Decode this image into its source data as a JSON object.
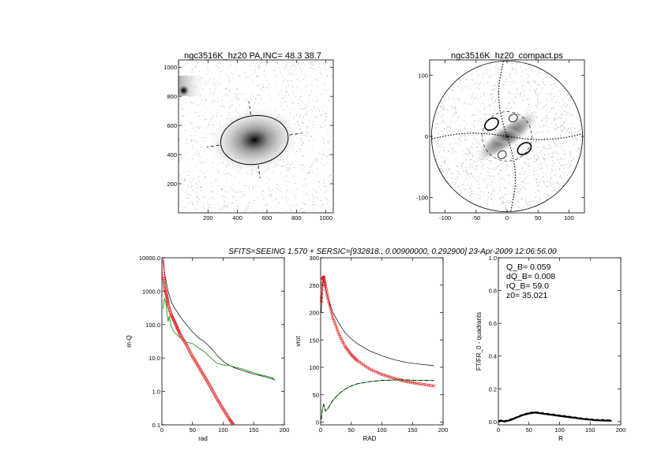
{
  "figure": {
    "header": "SFITS=SEEING 1.570 + SERSIC=[932818., 0.00900000, 0.292900]  23-Apr-2009 12:06:56.00"
  },
  "colors": {
    "axes": "#000000",
    "model": "#000000",
    "red_series": "#e02020",
    "green_series": "#1a9a1a",
    "image_gray": "#9a9a9a"
  },
  "chart_data": [
    {
      "id": "image",
      "type": "heatmap",
      "title": "ngc3516K_hz20 PA,INC= 48.3 38.7",
      "xlabel": "",
      "ylabel": "",
      "xlim": [
        0,
        1050
      ],
      "ylim": [
        0,
        1050
      ],
      "xticks": [
        "200",
        "400",
        "600",
        "800",
        "1000"
      ],
      "yticks": [
        "200",
        "400",
        "600",
        "800",
        "1000"
      ],
      "source_center": [
        515,
        500
      ],
      "bright_star": [
        35,
        840
      ],
      "ellipse": {
        "center": [
          515,
          500
        ],
        "semi_major": 230,
        "semi_minor": 165,
        "pa_deg": 48.3
      }
    },
    {
      "id": "compact",
      "type": "heatmap",
      "title": "ngc3516K_hz20_compact.ps",
      "xlabel": "",
      "ylabel": "",
      "xlim": [
        -125,
        125
      ],
      "ylim": [
        -125,
        125
      ],
      "xticks": [
        "-100",
        "-50",
        "0",
        "50",
        "100"
      ],
      "yticks": [
        "-100",
        "0",
        "100"
      ],
      "circle_radius": 122,
      "inner_dashed_radius": 40
    },
    {
      "id": "sb_profile",
      "type": "line",
      "title": "",
      "xlabel": "rad",
      "ylabel": "m-Q",
      "xlim": [
        0,
        200
      ],
      "ylim": [
        0.1,
        10000
      ],
      "yscale": "log",
      "xticks": [
        "0",
        "50",
        "100",
        "150",
        "200"
      ],
      "yticks": [
        "0.1",
        "1.0",
        "10.0",
        "100.0",
        "1000.0",
        "10000.0"
      ],
      "series": [
        {
          "style": "solid-black",
          "x": [
            2,
            5,
            10,
            15,
            20,
            30,
            40,
            50,
            60,
            70,
            80,
            90,
            100,
            110,
            120,
            130,
            140,
            150,
            160,
            170,
            180,
            185
          ],
          "y": [
            8000,
            3000,
            1000,
            500,
            330,
            170,
            100,
            60,
            40,
            30,
            20,
            12,
            8,
            6,
            5,
            4.3,
            3.8,
            3.3,
            3.0,
            2.7,
            2.4,
            2.2
          ]
        },
        {
          "style": "green",
          "x": [
            2,
            4,
            6,
            8,
            10,
            12,
            15,
            20,
            30,
            40,
            50,
            60,
            70,
            80,
            90,
            100,
            110,
            120,
            130,
            140,
            150,
            160,
            170,
            180,
            185
          ],
          "y": [
            300,
            600,
            500,
            250,
            120,
            180,
            90,
            60,
            40,
            30,
            27,
            20,
            15,
            10,
            7,
            6.2,
            6,
            5.3,
            4.8,
            4.2,
            3.6,
            3.2,
            2.9,
            2.6,
            2.2
          ]
        },
        {
          "style": "red-circles",
          "x": [
            1,
            3,
            5,
            8,
            10,
            15,
            20,
            25,
            30,
            40,
            50,
            60,
            70,
            80,
            90,
            100,
            110,
            117
          ],
          "y": [
            9000,
            2500,
            1200,
            700,
            400,
            200,
            130,
            80,
            50,
            25,
            11,
            5.5,
            2.7,
            1.3,
            0.6,
            0.3,
            0.15,
            0.1
          ]
        }
      ]
    },
    {
      "id": "rotation",
      "type": "line",
      "title": "",
      "xlabel": "RAD",
      "ylabel": "vrot",
      "xlim": [
        0,
        200
      ],
      "ylim": [
        -5,
        300
      ],
      "xticks": [
        "0",
        "50",
        "100",
        "150",
        "200"
      ],
      "yticks": [
        "0",
        "50",
        "100",
        "150",
        "200",
        "250",
        "300"
      ],
      "series": [
        {
          "style": "solid-black",
          "x": [
            1,
            3,
            5,
            8,
            12,
            20,
            30,
            40,
            50,
            60,
            80,
            100,
            120,
            140,
            160,
            185
          ],
          "y": [
            200,
            250,
            262,
            245,
            225,
            200,
            180,
            163,
            152,
            143,
            130,
            121,
            114,
            109,
            106,
            103
          ]
        },
        {
          "style": "red-circles",
          "x": [
            1,
            3,
            5,
            8,
            12,
            20,
            30,
            40,
            50,
            60,
            80,
            100,
            120,
            140,
            160,
            185
          ],
          "y": [
            220,
            262,
            265,
            248,
            225,
            190,
            160,
            138,
            123,
            112,
            97,
            87,
            80,
            74,
            70,
            66
          ]
        },
        {
          "style": "green-dashed",
          "x": [
            1,
            3,
            5,
            8,
            12,
            20,
            30,
            40,
            50,
            60,
            80,
            100,
            120,
            140,
            160,
            185
          ],
          "y": [
            5,
            25,
            32,
            20,
            25,
            40,
            52,
            60,
            66,
            70,
            74,
            76,
            77,
            77,
            76,
            76
          ]
        }
      ]
    },
    {
      "id": "quadrants",
      "type": "line",
      "title": "",
      "xlabel": "R",
      "ylabel": "FT/FR_0 - quadrants",
      "xlim": [
        0,
        200
      ],
      "ylim": [
        -0.02,
        1.0
      ],
      "xticks": [
        "0",
        "50",
        "100",
        "150",
        "200"
      ],
      "yticks": [
        "0.0",
        "0.2",
        "0.4",
        "0.6",
        "0.8",
        "1.0"
      ],
      "annotations": [
        "Q_B=  0.059",
        "dQ_B=  0.008",
        "rQ_B=   59.0",
        "z0= 35.021"
      ],
      "series": [
        {
          "style": "thick-black",
          "x": [
            0,
            5,
            10,
            20,
            30,
            40,
            50,
            60,
            70,
            80,
            100,
            120,
            140,
            160,
            185
          ],
          "y": [
            0.0,
            0.005,
            0.0,
            0.01,
            0.025,
            0.04,
            0.05,
            0.055,
            0.05,
            0.045,
            0.035,
            0.025,
            0.015,
            0.008,
            0.005
          ]
        }
      ]
    }
  ]
}
